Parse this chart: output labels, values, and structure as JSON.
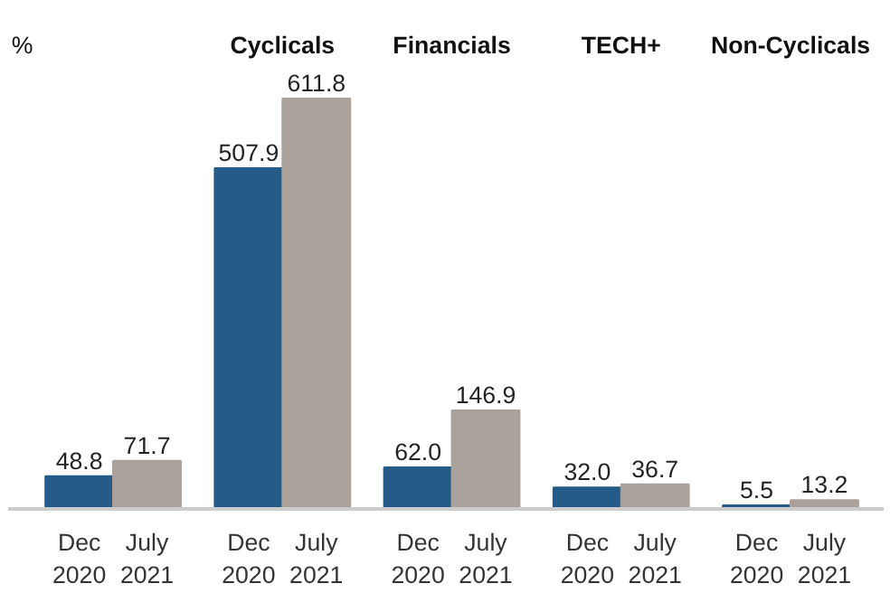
{
  "chart_data": {
    "type": "bar",
    "annotations": [
      "%"
    ],
    "categories": [
      null,
      "Cyclicals",
      "Financials",
      "TECH+",
      "Non-Cyclicals"
    ],
    "series": [
      {
        "name": "Dec 2020",
        "color": "#255b89",
        "values": [
          48.8,
          507.9,
          62.0,
          32.0,
          5.5
        ],
        "value_labels": [
          "48.8",
          "507.9",
          "62.0",
          "32.0",
          "5.5"
        ]
      },
      {
        "name": "July 2021",
        "color": "#aaa29b",
        "values": [
          71.7,
          611.8,
          146.9,
          36.7,
          13.2
        ],
        "value_labels": [
          "71.7",
          "611.8",
          "146.9",
          "36.7",
          "13.2"
        ]
      }
    ],
    "grid": false
  }
}
